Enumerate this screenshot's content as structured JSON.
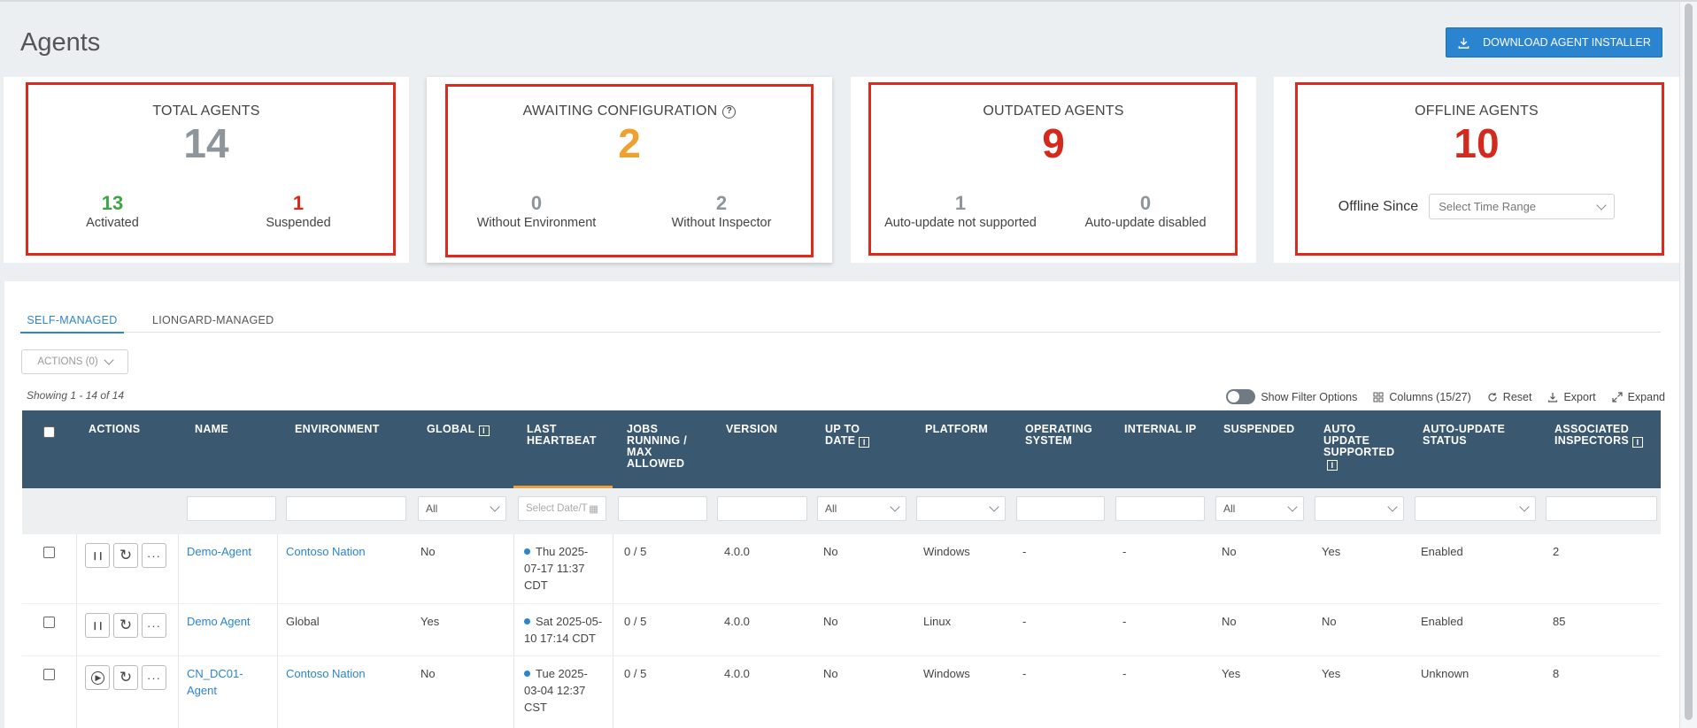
{
  "page": {
    "title": "Agents"
  },
  "header": {
    "download_label": "DOWNLOAD AGENT INSTALLER"
  },
  "cards": {
    "total": {
      "title": "TOTAL AGENTS",
      "value": "14",
      "color": "#8e959b",
      "sub": [
        {
          "value": "13",
          "label": "Activated",
          "color": "#3fa447"
        },
        {
          "value": "1",
          "label": "Suspended",
          "color": "#d42a1e"
        }
      ]
    },
    "awaiting": {
      "title": "AWAITING CONFIGURATION",
      "value": "2",
      "color": "#f0a030",
      "sub": [
        {
          "value": "0",
          "label": "Without Environment",
          "color": "#8e959b"
        },
        {
          "value": "2",
          "label": "Without Inspector",
          "color": "#8e959b"
        }
      ]
    },
    "outdated": {
      "title": "OUTDATED AGENTS",
      "value": "9",
      "color": "#d42a1e",
      "sub": [
        {
          "value": "1",
          "label": "Auto-update not supported",
          "color": "#8e959b"
        },
        {
          "value": "0",
          "label": "Auto-update disabled",
          "color": "#8e959b"
        }
      ]
    },
    "offline": {
      "title": "OFFLINE AGENTS",
      "value": "10",
      "color": "#d42a1e",
      "since_label": "Offline Since",
      "time_range_placeholder": "Select Time Range"
    }
  },
  "tabs": [
    {
      "label": "SELF-MANAGED",
      "active": true
    },
    {
      "label": "LIONGARD-MANAGED",
      "active": false
    }
  ],
  "actions_dropdown": "ACTIONS (0)",
  "showing": "Showing 1 - 14 of 14",
  "toolbar": {
    "filters": "Show Filter Options",
    "columns": "Columns (15/27)",
    "reset": "Reset",
    "export": "Export",
    "expand": "Expand"
  },
  "columns": {
    "actions": "ACTIONS",
    "name": "NAME",
    "environment": "ENVIRONMENT",
    "global": "GLOBAL",
    "heartbeat": "LAST HEARTBEAT",
    "jobs": "JOBS RUNNING / MAX ALLOWED",
    "version": "VERSION",
    "uptodate": "UP TO DATE",
    "platform": "PLATFORM",
    "os": "OPERATING SYSTEM",
    "ip": "INTERNAL IP",
    "suspended": "SUSPENDED",
    "au_supported": "AUTO UPDATE SUPPORTED",
    "au_status": "AUTO-UPDATE STATUS",
    "inspectors": "ASSOCIATED INSPECTORS"
  },
  "filters": {
    "all": "All",
    "date_placeholder": "Select Date/T"
  },
  "rows": [
    {
      "name": "Demo-Agent",
      "environment": "Contoso Nation",
      "env_link": true,
      "global": "No",
      "heartbeat": [
        "Thu 2025-",
        "07-17 11:37",
        "CDT"
      ],
      "jobs": "0 / 5",
      "version": "4.0.0",
      "uptodate": "No",
      "platform": "Windows",
      "os": "-",
      "ip": "-",
      "suspended": "No",
      "au_supported": "Yes",
      "au_status": "Enabled",
      "inspectors": "2"
    },
    {
      "name": "Demo Agent",
      "environment": "Global",
      "env_link": false,
      "global": "Yes",
      "heartbeat": [
        "Sat 2025-05-",
        "10 17:14 CDT"
      ],
      "jobs": "0 / 5",
      "version": "4.0.0",
      "uptodate": "No",
      "platform": "Linux",
      "os": "-",
      "ip": "-",
      "suspended": "No",
      "au_supported": "No",
      "au_status": "Enabled",
      "inspectors": "85"
    },
    {
      "name": "CN_DC01-\nAgent",
      "name_lines": [
        "CN_DC01-",
        "Agent"
      ],
      "environment": "Contoso Nation",
      "env_link": true,
      "global": "No",
      "heartbeat": [
        "Tue 2025-",
        "03-04 12:37",
        "CST"
      ],
      "jobs": "0 / 5",
      "version": "4.0.0",
      "uptodate": "No",
      "platform": "Windows",
      "os": "-",
      "ip": "-",
      "suspended": "Yes",
      "au_supported": "Yes",
      "au_status": "Unknown",
      "inspectors": "8"
    }
  ]
}
